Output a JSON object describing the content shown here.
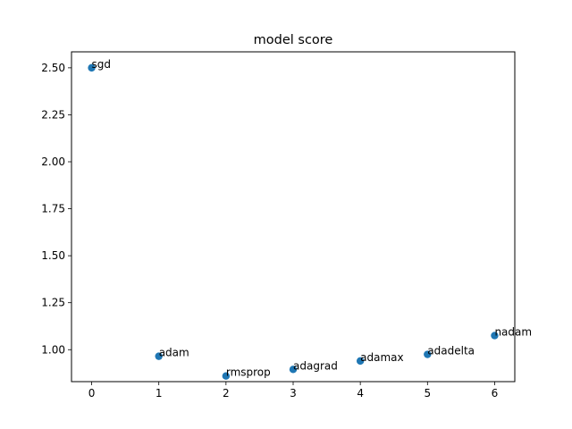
{
  "chart_data": {
    "type": "scatter",
    "title": "model score",
    "xlabel": "",
    "ylabel": "",
    "xlim": [
      -0.3,
      6.3
    ],
    "ylim": [
      0.83,
      2.585
    ],
    "xticks": [
      0,
      1,
      2,
      3,
      4,
      5,
      6
    ],
    "xtick_labels": [
      "0",
      "1",
      "2",
      "3",
      "4",
      "5",
      "6"
    ],
    "yticks": [
      1.0,
      1.25,
      1.5,
      1.75,
      2.0,
      2.25,
      2.5
    ],
    "ytick_labels": [
      "1.00",
      "1.25",
      "1.50",
      "1.75",
      "2.00",
      "2.25",
      "2.50"
    ],
    "grid": false,
    "marker_color": "#1f77b4",
    "points": [
      {
        "x": 0,
        "y": 2.5,
        "label": "sgd"
      },
      {
        "x": 1,
        "y": 0.965,
        "label": "adam"
      },
      {
        "x": 2,
        "y": 0.86,
        "label": "rmsprop"
      },
      {
        "x": 3,
        "y": 0.895,
        "label": "adagrad"
      },
      {
        "x": 4,
        "y": 0.94,
        "label": "adamax"
      },
      {
        "x": 5,
        "y": 0.975,
        "label": "adadelta"
      },
      {
        "x": 6,
        "y": 1.075,
        "label": "nadam"
      }
    ]
  }
}
